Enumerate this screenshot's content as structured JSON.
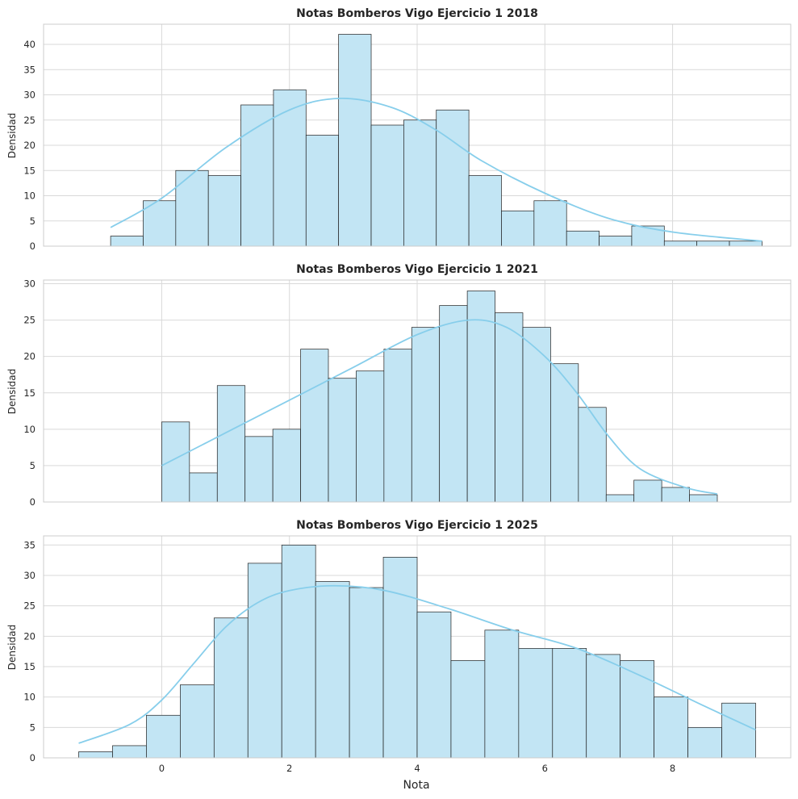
{
  "chart_data": [
    {
      "type": "bar",
      "title": "Notas Bomberos Vigo Ejercicio 1 2018",
      "xlabel": "",
      "ylabel": "Densidad",
      "ylim": [
        0,
        44
      ],
      "yticks": [
        "0",
        "5",
        "10",
        "15",
        "20",
        "25",
        "30",
        "35",
        "40"
      ],
      "bin_start": -0.8,
      "bin_width": 0.51,
      "values": [
        2,
        9,
        15,
        14,
        28,
        31,
        22,
        42,
        24,
        25,
        27,
        14,
        7,
        9,
        3,
        2,
        4,
        1,
        1,
        1
      ],
      "kde": [
        [
          -0.8,
          3.7
        ],
        [
          0.0,
          9.5
        ],
        [
          1.0,
          19.5
        ],
        [
          2.0,
          27.0
        ],
        [
          2.8,
          29.3
        ],
        [
          3.6,
          27.5
        ],
        [
          4.3,
          23.0
        ],
        [
          5.0,
          17.0
        ],
        [
          6.0,
          10.5
        ],
        [
          7.0,
          5.5
        ],
        [
          8.0,
          2.8
        ],
        [
          9.4,
          1.0
        ]
      ],
      "grid": true
    },
    {
      "type": "bar",
      "title": "Notas Bomberos Vigo Ejercicio 1 2021",
      "xlabel": "",
      "ylabel": "Densidad",
      "ylim": [
        0,
        30.5
      ],
      "yticks": [
        "0",
        "5",
        "10",
        "15",
        "20",
        "25",
        "30"
      ],
      "bin_start": 0.0,
      "bin_width": 0.435,
      "values": [
        11,
        4,
        16,
        9,
        10,
        21,
        17,
        18,
        21,
        24,
        27,
        29,
        26,
        24,
        19,
        13,
        1,
        3,
        2,
        1
      ],
      "kde": [
        [
          0.0,
          5.0
        ],
        [
          1.0,
          9.5
        ],
        [
          2.0,
          14.0
        ],
        [
          3.0,
          18.5
        ],
        [
          4.0,
          23.0
        ],
        [
          4.8,
          25.0
        ],
        [
          5.4,
          24.0
        ],
        [
          6.0,
          20.0
        ],
        [
          6.5,
          15.0
        ],
        [
          7.0,
          9.0
        ],
        [
          7.5,
          4.5
        ],
        [
          8.2,
          2.0
        ],
        [
          8.7,
          1.1
        ]
      ],
      "grid": true
    },
    {
      "type": "bar",
      "title": "Notas Bomberos Vigo Ejercicio 1 2025",
      "xlabel": "Nota",
      "ylabel": "Densidad",
      "ylim": [
        0,
        36.5
      ],
      "yticks": [
        "0",
        "5",
        "10",
        "15",
        "20",
        "25",
        "30",
        "35"
      ],
      "bin_start": -1.3,
      "bin_width": 0.53,
      "values": [
        1,
        2,
        7,
        12,
        23,
        32,
        35,
        29,
        28,
        33,
        24,
        16,
        21,
        18,
        18,
        17,
        16,
        10,
        5,
        9
      ],
      "kde": [
        [
          -1.3,
          2.4
        ],
        [
          -0.5,
          5.5
        ],
        [
          0.0,
          9.5
        ],
        [
          0.5,
          15.5
        ],
        [
          1.0,
          21.5
        ],
        [
          1.5,
          25.5
        ],
        [
          2.0,
          27.5
        ],
        [
          2.7,
          28.3
        ],
        [
          3.5,
          27.5
        ],
        [
          4.5,
          24.5
        ],
        [
          5.5,
          21.0
        ],
        [
          6.5,
          18.0
        ],
        [
          7.5,
          13.5
        ],
        [
          8.5,
          8.5
        ],
        [
          9.3,
          4.6
        ]
      ],
      "grid": true
    }
  ],
  "x_axis": {
    "xlim": [
      -1.85,
      9.85
    ],
    "ticks": [
      0,
      2,
      4,
      6,
      8
    ],
    "tick_labels": [
      "0",
      "2",
      "4",
      "6",
      "8"
    ]
  },
  "colors": {
    "bar_fill": "#c2e5f4",
    "bar_edge": "#1f1f1f",
    "kde_line": "#87ceeb",
    "grid": "#d9d9d9",
    "spine": "#cccccc"
  }
}
